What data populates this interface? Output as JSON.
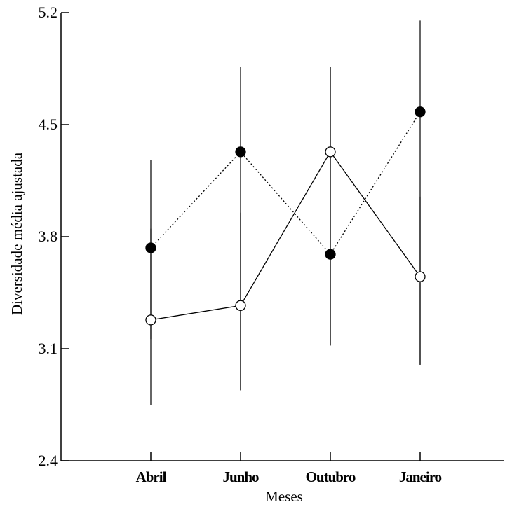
{
  "chart_data": {
    "type": "line",
    "xlabel": "Meses",
    "ylabel": "Diversidade média ajustada",
    "categories": [
      "Abril",
      "Junho",
      "Outubro",
      "Janeiro"
    ],
    "ylim": [
      2.4,
      5.2
    ],
    "yticks": [
      "2.4",
      "3.1",
      "3.8",
      "4.5",
      "5.2"
    ],
    "grid": false,
    "series": [
      {
        "marker": "filled-circle",
        "line_style": "dotted",
        "values": [
          3.73,
          4.33,
          3.69,
          4.58
        ],
        "error_low": [
          3.16,
          2.84,
          3.12,
          3.0
        ],
        "error_high": [
          4.28,
          4.86,
          4.86,
          5.15
        ]
      },
      {
        "marker": "open-circle",
        "line_style": "solid",
        "values": [
          3.28,
          3.37,
          4.33,
          3.55
        ],
        "error_low": [
          2.75,
          2.84,
          3.12,
          3.0
        ],
        "error_high": [
          3.85,
          3.95,
          4.86,
          4.05
        ]
      }
    ]
  }
}
